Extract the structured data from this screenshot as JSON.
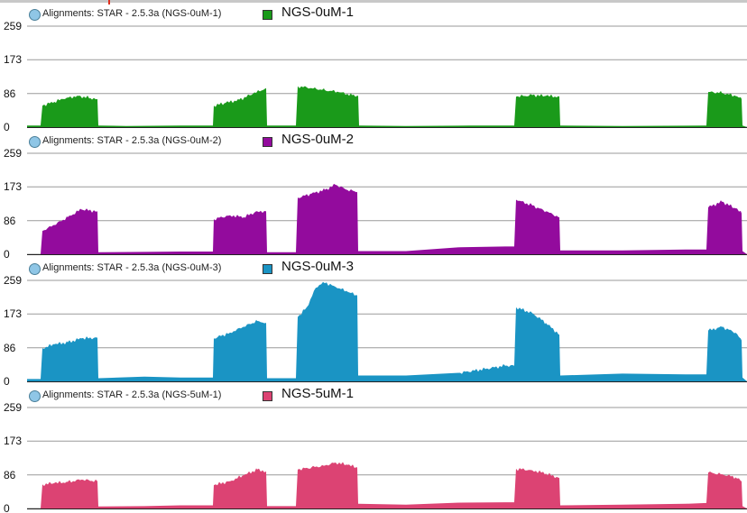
{
  "y_axis": {
    "ticks": [
      "259",
      "173",
      "86",
      "0"
    ],
    "max": 259
  },
  "tracks": [
    {
      "source": "Alignments: STAR - 2.5.3a (NGS-0uM-1)",
      "label": "NGS-0uM-1",
      "color": "#1a9a1a",
      "coverage": [
        [
          0,
          4
        ],
        [
          45,
          4
        ],
        [
          47,
          55
        ],
        [
          60,
          65
        ],
        [
          70,
          72
        ],
        [
          85,
          80
        ],
        [
          100,
          75
        ],
        [
          108,
          72
        ],
        [
          109,
          4
        ],
        [
          140,
          3
        ],
        [
          200,
          4
        ],
        [
          236,
          4
        ],
        [
          237,
          55
        ],
        [
          250,
          62
        ],
        [
          265,
          70
        ],
        [
          280,
          85
        ],
        [
          295,
          100
        ],
        [
          296,
          4
        ],
        [
          328,
          4
        ],
        [
          330,
          105
        ],
        [
          345,
          100
        ],
        [
          360,
          95
        ],
        [
          375,
          90
        ],
        [
          390,
          82
        ],
        [
          397,
          80
        ],
        [
          398,
          4
        ],
        [
          450,
          3
        ],
        [
          520,
          4
        ],
        [
          570,
          4
        ],
        [
          572,
          78
        ],
        [
          590,
          82
        ],
        [
          605,
          80
        ],
        [
          620,
          78
        ],
        [
          621,
          4
        ],
        [
          690,
          3
        ],
        [
          783,
          4
        ],
        [
          785,
          90
        ],
        [
          800,
          88
        ],
        [
          815,
          80
        ],
        [
          822,
          72
        ],
        [
          823,
          4
        ]
      ]
    },
    {
      "source": "Alignments: STAR - 2.5.3a (NGS-0uM-2)",
      "label": "NGS-0uM-2",
      "color": "#930b9d",
      "coverage": [
        [
          0,
          0
        ],
        [
          45,
          0
        ],
        [
          47,
          60
        ],
        [
          60,
          75
        ],
        [
          75,
          95
        ],
        [
          90,
          115
        ],
        [
          108,
          110
        ],
        [
          109,
          5
        ],
        [
          160,
          6
        ],
        [
          200,
          7
        ],
        [
          236,
          7
        ],
        [
          237,
          90
        ],
        [
          255,
          100
        ],
        [
          270,
          95
        ],
        [
          285,
          110
        ],
        [
          295,
          110
        ],
        [
          296,
          5
        ],
        [
          328,
          5
        ],
        [
          330,
          145
        ],
        [
          345,
          155
        ],
        [
          360,
          165
        ],
        [
          372,
          178
        ],
        [
          385,
          165
        ],
        [
          396,
          160
        ],
        [
          397,
          8
        ],
        [
          450,
          8
        ],
        [
          510,
          18
        ],
        [
          560,
          20
        ],
        [
          570,
          20
        ],
        [
          572,
          140
        ],
        [
          590,
          125
        ],
        [
          605,
          110
        ],
        [
          620,
          95
        ],
        [
          621,
          10
        ],
        [
          690,
          10
        ],
        [
          760,
          12
        ],
        [
          783,
          12
        ],
        [
          785,
          120
        ],
        [
          800,
          135
        ],
        [
          815,
          118
        ],
        [
          822,
          105
        ],
        [
          823,
          8
        ]
      ]
    },
    {
      "source": "Alignments: STAR - 2.5.3a (NGS-0uM-3)",
      "label": "NGS-0uM-3",
      "color": "#1a94c4",
      "coverage": [
        [
          0,
          6
        ],
        [
          45,
          6
        ],
        [
          47,
          85
        ],
        [
          60,
          95
        ],
        [
          75,
          100
        ],
        [
          90,
          110
        ],
        [
          108,
          112
        ],
        [
          109,
          8
        ],
        [
          160,
          12
        ],
        [
          200,
          10
        ],
        [
          236,
          10
        ],
        [
          237,
          110
        ],
        [
          255,
          125
        ],
        [
          270,
          140
        ],
        [
          285,
          155
        ],
        [
          295,
          150
        ],
        [
          296,
          8
        ],
        [
          328,
          8
        ],
        [
          330,
          165
        ],
        [
          340,
          190
        ],
        [
          350,
          240
        ],
        [
          358,
          255
        ],
        [
          370,
          245
        ],
        [
          385,
          230
        ],
        [
          396,
          220
        ],
        [
          397,
          15
        ],
        [
          450,
          15
        ],
        [
          510,
          22
        ],
        [
          560,
          40
        ],
        [
          570,
          40
        ],
        [
          572,
          190
        ],
        [
          590,
          175
        ],
        [
          605,
          150
        ],
        [
          620,
          120
        ],
        [
          621,
          15
        ],
        [
          690,
          20
        ],
        [
          760,
          18
        ],
        [
          783,
          18
        ],
        [
          785,
          130
        ],
        [
          800,
          140
        ],
        [
          815,
          125
        ],
        [
          822,
          105
        ],
        [
          823,
          10
        ]
      ]
    },
    {
      "source": "Alignments: STAR - 2.5.3a (NGS-5uM-1)",
      "label": "NGS-5uM-1",
      "color": "#dc4373",
      "coverage": [
        [
          0,
          0
        ],
        [
          45,
          0
        ],
        [
          47,
          62
        ],
        [
          60,
          65
        ],
        [
          75,
          68
        ],
        [
          90,
          74
        ],
        [
          108,
          70
        ],
        [
          109,
          5
        ],
        [
          160,
          6
        ],
        [
          200,
          8
        ],
        [
          236,
          8
        ],
        [
          237,
          60
        ],
        [
          255,
          70
        ],
        [
          270,
          85
        ],
        [
          285,
          100
        ],
        [
          295,
          95
        ],
        [
          296,
          6
        ],
        [
          328,
          6
        ],
        [
          330,
          100
        ],
        [
          345,
          105
        ],
        [
          360,
          110
        ],
        [
          372,
          118
        ],
        [
          385,
          112
        ],
        [
          396,
          105
        ],
        [
          397,
          12
        ],
        [
          450,
          10
        ],
        [
          510,
          15
        ],
        [
          560,
          16
        ],
        [
          570,
          16
        ],
        [
          572,
          102
        ],
        [
          590,
          98
        ],
        [
          605,
          90
        ],
        [
          620,
          78
        ],
        [
          621,
          8
        ],
        [
          690,
          10
        ],
        [
          760,
          12
        ],
        [
          783,
          14
        ],
        [
          785,
          92
        ],
        [
          800,
          88
        ],
        [
          815,
          80
        ],
        [
          822,
          70
        ],
        [
          823,
          6
        ]
      ]
    }
  ]
}
